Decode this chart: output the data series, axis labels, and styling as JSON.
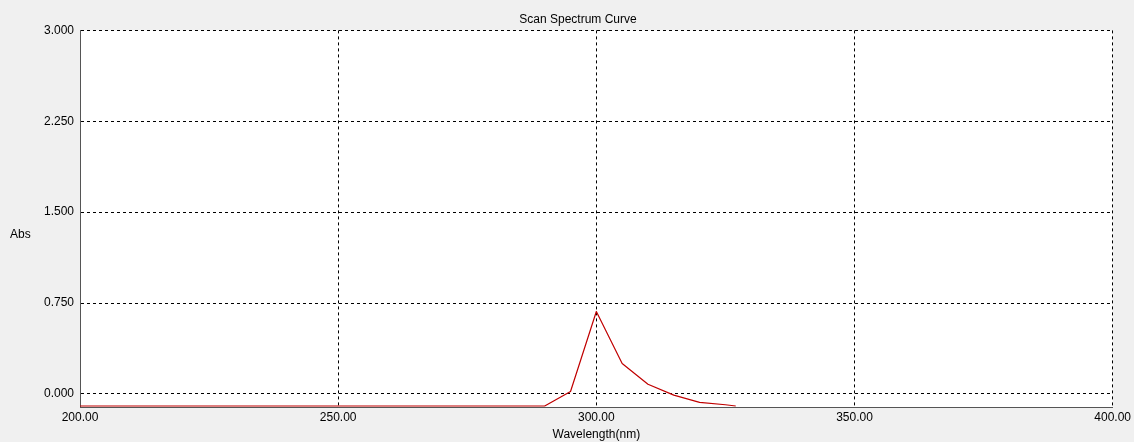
{
  "chart_data": {
    "type": "line",
    "title": "Scan Spectrum Curve",
    "xlabel": "Wavelength(nm)",
    "ylabel": "Abs",
    "x": [
      200,
      290,
      295,
      300,
      305,
      310,
      315,
      320,
      325,
      327
    ],
    "series": [
      {
        "color": "#c00000",
        "values": [
          -0.1,
          -0.1,
          0.02,
          0.68,
          0.25,
          0.08,
          -0.01,
          -0.07,
          -0.09,
          -0.1
        ]
      }
    ],
    "xlim": [
      200,
      400
    ],
    "xticks": [
      {
        "value": 200,
        "label": "200.00"
      },
      {
        "value": 250,
        "label": "250.00"
      },
      {
        "value": 300,
        "label": "300.00"
      },
      {
        "value": 350,
        "label": "350.00"
      },
      {
        "value": 400,
        "label": "400.00"
      }
    ],
    "ylim": [
      -0.11,
      3
    ],
    "yticks": [
      {
        "value": 0,
        "label": "0.000"
      },
      {
        "value": 0.75,
        "label": "0.750"
      },
      {
        "value": 1.5,
        "label": "1.500"
      },
      {
        "value": 2.25,
        "label": "2.250"
      },
      {
        "value": 3,
        "label": "3.000"
      }
    ],
    "grid": true,
    "legend": false,
    "marker": "none",
    "line_style": "solid"
  }
}
